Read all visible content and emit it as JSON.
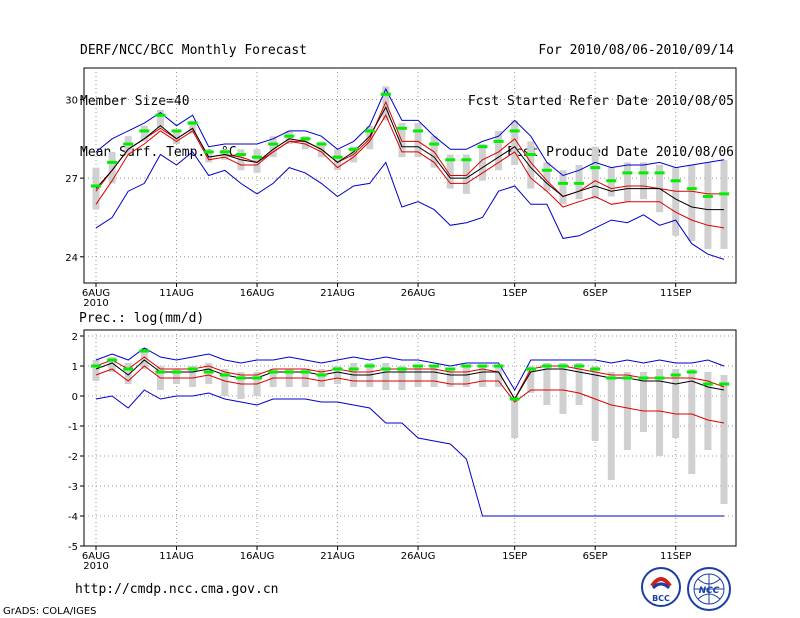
{
  "header": {
    "title": "DERF/NCC/BCC Monthly Forecast",
    "member_size": "Member Size=40",
    "variable": "Mean Surf. Temp.: °C",
    "period": "For 2010/08/06-2010/09/14",
    "started": "Fcst Started Refer Date 2010/08/05",
    "produced": "Fcst Produced Date 2010/08/06"
  },
  "footer": {
    "url": "http://cmdp.ncc.cma.gov.cn",
    "grads": "GrADS: COLA/IGES",
    "logo_bcc": "BCC",
    "logo_ncc": "NCC"
  },
  "colors": {
    "box": "#d0d0d0",
    "median": "#00ee00",
    "mean": "#000000",
    "inner": "#dd0000",
    "outer": "#0000cc",
    "grid": "#999999"
  },
  "chart_data": [
    {
      "type": "line",
      "title": "Mean Surf. Temp.: °C",
      "x": [
        "6AUG",
        "7AUG",
        "8AUG",
        "9AUG",
        "10AUG",
        "11AUG",
        "12AUG",
        "13AUG",
        "14AUG",
        "15AUG",
        "16AUG",
        "17AUG",
        "18AUG",
        "19AUG",
        "20AUG",
        "21AUG",
        "22AUG",
        "23AUG",
        "24AUG",
        "25AUG",
        "26AUG",
        "27AUG",
        "28AUG",
        "29AUG",
        "30AUG",
        "31AUG",
        "1SEP",
        "2SEP",
        "3SEP",
        "4SEP",
        "5SEP",
        "6SEP",
        "7SEP",
        "8SEP",
        "9SEP",
        "10SEP",
        "11SEP",
        "12SEP",
        "13SEP",
        "14SEP"
      ],
      "x_tick_labels": [
        "6AUG",
        "11AUG",
        "16AUG",
        "21AUG",
        "26AUG",
        "1SEP",
        "6SEP",
        "11SEP"
      ],
      "x_year_label": "2010",
      "ylim": [
        23,
        31.2
      ],
      "y_ticks": [
        24,
        27,
        30
      ],
      "series": [
        {
          "name": "outer_max",
          "values": [
            28.0,
            28.5,
            28.8,
            29.1,
            29.5,
            29.0,
            29.4,
            28.2,
            28.3,
            28.3,
            28.3,
            28.5,
            28.8,
            28.8,
            28.6,
            28.1,
            28.4,
            29.0,
            30.4,
            29.2,
            29.2,
            28.6,
            28.1,
            28.1,
            28.4,
            28.6,
            29.2,
            28.6,
            27.6,
            27.1,
            27.3,
            27.6,
            27.4,
            27.5,
            27.5,
            27.6,
            27.4,
            27.5,
            27.6,
            27.7
          ]
        },
        {
          "name": "inner_max",
          "values": [
            26.5,
            27.3,
            28.1,
            28.5,
            28.9,
            28.5,
            28.9,
            27.8,
            27.9,
            27.8,
            27.6,
            28.0,
            28.4,
            28.4,
            28.1,
            27.6,
            27.9,
            28.5,
            29.9,
            28.4,
            28.4,
            28.0,
            27.1,
            27.1,
            27.7,
            28.0,
            28.5,
            27.6,
            26.9,
            26.3,
            26.5,
            26.9,
            26.6,
            26.7,
            26.7,
            26.6,
            26.5,
            26.5,
            26.4,
            26.4
          ]
        },
        {
          "name": "mean",
          "values": [
            26.6,
            27.3,
            28.1,
            28.5,
            29.0,
            28.5,
            28.9,
            27.8,
            27.9,
            27.7,
            27.6,
            28.1,
            28.5,
            28.4,
            28.1,
            27.6,
            28.0,
            28.6,
            29.7,
            28.2,
            28.2,
            27.8,
            27.0,
            27.0,
            27.4,
            27.8,
            28.2,
            27.4,
            26.8,
            26.3,
            26.5,
            26.7,
            26.5,
            26.6,
            26.6,
            26.6,
            26.2,
            25.9,
            25.8,
            25.8
          ]
        },
        {
          "name": "inner_min",
          "values": [
            26.0,
            26.9,
            27.9,
            28.3,
            28.8,
            28.4,
            28.8,
            27.7,
            27.8,
            27.5,
            27.5,
            28.0,
            28.4,
            28.3,
            28.0,
            27.4,
            27.8,
            28.4,
            29.4,
            28.0,
            28.0,
            27.6,
            26.8,
            26.8,
            27.2,
            27.6,
            28.0,
            27.0,
            26.5,
            25.9,
            26.1,
            26.3,
            26.0,
            26.1,
            26.1,
            26.1,
            25.7,
            25.4,
            25.2,
            25.1
          ]
        },
        {
          "name": "outer_min",
          "values": [
            25.1,
            25.5,
            26.5,
            26.8,
            27.9,
            27.5,
            28.0,
            27.1,
            27.3,
            26.8,
            26.4,
            26.8,
            27.4,
            27.2,
            26.8,
            26.3,
            26.7,
            26.8,
            27.6,
            25.9,
            26.1,
            25.8,
            25.2,
            25.3,
            25.5,
            26.5,
            26.7,
            26.0,
            26.0,
            24.7,
            24.8,
            25.1,
            25.4,
            25.3,
            25.6,
            25.2,
            25.4,
            24.5,
            24.1,
            23.9
          ]
        },
        {
          "name": "median",
          "values": [
            26.7,
            27.6,
            28.3,
            28.8,
            29.4,
            28.8,
            29.1,
            28.0,
            28.0,
            27.9,
            27.8,
            28.3,
            28.6,
            28.5,
            28.3,
            27.8,
            28.1,
            28.8,
            30.2,
            28.9,
            28.8,
            28.3,
            27.7,
            27.7,
            28.2,
            28.4,
            28.8,
            27.9,
            27.3,
            26.8,
            26.8,
            27.4,
            26.9,
            27.2,
            27.2,
            27.2,
            26.9,
            26.6,
            26.3,
            26.4
          ]
        },
        {
          "name": "box_high",
          "values": [
            27.4,
            28.0,
            28.6,
            29.0,
            29.6,
            28.8,
            29.2,
            28.1,
            28.1,
            28.1,
            28.1,
            28.6,
            28.8,
            28.6,
            28.4,
            28.1,
            28.2,
            29.0,
            30.5,
            29.1,
            29.1,
            28.6,
            27.9,
            27.9,
            28.3,
            28.8,
            29.2,
            28.4,
            27.6,
            27.3,
            27.5,
            28.2,
            27.4,
            27.6,
            27.6,
            27.5,
            27.4,
            27.5,
            27.6,
            27.7
          ]
        },
        {
          "name": "box_low",
          "values": [
            25.8,
            26.8,
            27.9,
            28.4,
            28.9,
            28.3,
            28.7,
            27.6,
            27.7,
            27.3,
            27.2,
            27.8,
            28.3,
            28.1,
            27.8,
            27.3,
            27.6,
            28.1,
            29.2,
            27.8,
            27.8,
            27.4,
            26.6,
            26.4,
            26.9,
            27.3,
            27.5,
            26.6,
            26.5,
            26.0,
            26.2,
            26.2,
            26.3,
            26.1,
            26.2,
            25.7,
            24.8,
            24.6,
            24.3,
            24.3
          ]
        }
      ]
    },
    {
      "type": "line",
      "title": "Prec.: log(mm/d)",
      "x": [
        "6AUG",
        "7AUG",
        "8AUG",
        "9AUG",
        "10AUG",
        "11AUG",
        "12AUG",
        "13AUG",
        "14AUG",
        "15AUG",
        "16AUG",
        "17AUG",
        "18AUG",
        "19AUG",
        "20AUG",
        "21AUG",
        "22AUG",
        "23AUG",
        "24AUG",
        "25AUG",
        "26AUG",
        "27AUG",
        "28AUG",
        "29AUG",
        "30AUG",
        "31AUG",
        "1SEP",
        "2SEP",
        "3SEP",
        "4SEP",
        "5SEP",
        "6SEP",
        "7SEP",
        "8SEP",
        "9SEP",
        "10SEP",
        "11SEP",
        "12SEP",
        "13SEP",
        "14SEP"
      ],
      "x_tick_labels": [
        "6AUG",
        "11AUG",
        "16AUG",
        "21AUG",
        "26AUG",
        "1SEP",
        "6SEP",
        "11SEP"
      ],
      "x_year_label": "2010",
      "ylim": [
        -5,
        2.2
      ],
      "y_ticks": [
        -5,
        -4,
        -3,
        -2,
        -1,
        0,
        1,
        2
      ],
      "series": [
        {
          "name": "outer_max",
          "values": [
            1.2,
            1.4,
            1.2,
            1.6,
            1.3,
            1.2,
            1.3,
            1.4,
            1.2,
            1.1,
            1.2,
            1.2,
            1.3,
            1.2,
            1.1,
            1.2,
            1.3,
            1.2,
            1.3,
            1.2,
            1.2,
            1.1,
            1.0,
            1.1,
            1.1,
            1.1,
            0.2,
            1.2,
            1.2,
            1.2,
            1.2,
            1.2,
            1.1,
            1.2,
            1.1,
            1.2,
            1.1,
            1.1,
            1.2,
            1.0
          ]
        },
        {
          "name": "inner_max",
          "values": [
            1.0,
            1.2,
            0.9,
            1.3,
            0.9,
            0.9,
            0.9,
            1.0,
            0.8,
            0.7,
            0.7,
            0.9,
            0.9,
            0.9,
            0.8,
            0.9,
            0.8,
            0.8,
            0.9,
            0.9,
            0.9,
            0.9,
            0.8,
            0.8,
            0.9,
            0.8,
            -0.1,
            0.9,
            1.0,
            1.0,
            0.9,
            0.8,
            0.7,
            0.7,
            0.6,
            0.6,
            0.6,
            0.6,
            0.5,
            0.3
          ]
        },
        {
          "name": "mean",
          "values": [
            0.9,
            1.1,
            0.7,
            1.2,
            0.8,
            0.8,
            0.8,
            0.9,
            0.7,
            0.6,
            0.6,
            0.8,
            0.8,
            0.8,
            0.7,
            0.8,
            0.7,
            0.7,
            0.8,
            0.8,
            0.8,
            0.8,
            0.7,
            0.7,
            0.8,
            0.8,
            -0.1,
            0.8,
            0.9,
            0.9,
            0.8,
            0.7,
            0.6,
            0.6,
            0.5,
            0.5,
            0.4,
            0.5,
            0.3,
            0.2
          ]
        },
        {
          "name": "inner_min",
          "values": [
            0.7,
            0.9,
            0.5,
            1.0,
            0.6,
            0.6,
            0.6,
            0.7,
            0.5,
            0.4,
            0.4,
            0.6,
            0.6,
            0.6,
            0.5,
            0.6,
            0.5,
            0.5,
            0.5,
            0.5,
            0.5,
            0.5,
            0.4,
            0.4,
            0.5,
            0.5,
            -0.2,
            0.2,
            0.2,
            0.2,
            0.1,
            -0.1,
            -0.3,
            -0.4,
            -0.5,
            -0.5,
            -0.6,
            -0.6,
            -0.8,
            -0.9
          ]
        },
        {
          "name": "outer_min",
          "values": [
            -0.1,
            0.0,
            -0.4,
            0.2,
            -0.1,
            0.0,
            0.0,
            0.1,
            -0.1,
            -0.2,
            -0.3,
            -0.1,
            -0.1,
            -0.1,
            -0.2,
            -0.2,
            -0.3,
            -0.4,
            -0.9,
            -0.9,
            -1.4,
            -1.5,
            -1.6,
            -2.1,
            -4.0,
            -4.0,
            -4.0,
            -4.0,
            -4.0,
            -4.0,
            -4.0,
            -4.0,
            -4.0,
            -4.0,
            -4.0,
            -4.0,
            -4.0,
            -4.0,
            -4.0,
            -4.0
          ]
        },
        {
          "name": "median",
          "values": [
            1.0,
            1.2,
            0.9,
            1.5,
            0.8,
            0.8,
            0.9,
            0.8,
            0.7,
            0.6,
            0.6,
            0.8,
            0.8,
            0.8,
            0.7,
            0.9,
            0.9,
            1.0,
            0.9,
            0.9,
            1.0,
            1.0,
            0.9,
            1.0,
            1.0,
            1.0,
            -0.1,
            0.9,
            1.0,
            1.0,
            1.0,
            0.9,
            0.6,
            0.6,
            0.6,
            0.6,
            0.7,
            0.8,
            0.4,
            0.4
          ]
        },
        {
          "name": "box_high",
          "values": [
            1.2,
            1.3,
            1.1,
            1.6,
            1.0,
            0.9,
            1.0,
            1.1,
            0.9,
            0.8,
            0.8,
            0.9,
            0.9,
            0.9,
            0.9,
            1.0,
            1.1,
            1.1,
            1.1,
            1.0,
            1.0,
            1.0,
            0.9,
            1.0,
            1.0,
            1.0,
            0.0,
            1.0,
            1.1,
            1.1,
            1.1,
            1.0,
            0.8,
            0.8,
            0.8,
            0.9,
            0.9,
            0.9,
            0.8,
            0.7
          ]
        },
        {
          "name": "box_low",
          "values": [
            0.5,
            0.8,
            0.4,
            0.9,
            0.2,
            0.4,
            0.3,
            0.4,
            0.0,
            -0.1,
            0.0,
            0.3,
            0.3,
            0.3,
            0.3,
            0.4,
            0.3,
            0.3,
            0.2,
            0.2,
            0.3,
            0.3,
            0.3,
            0.3,
            0.3,
            0.3,
            -1.4,
            0.1,
            -0.3,
            -0.6,
            -0.3,
            -1.5,
            -2.8,
            -1.8,
            -1.2,
            -2.0,
            -1.4,
            -2.6,
            -1.8,
            -3.6
          ]
        }
      ]
    }
  ]
}
